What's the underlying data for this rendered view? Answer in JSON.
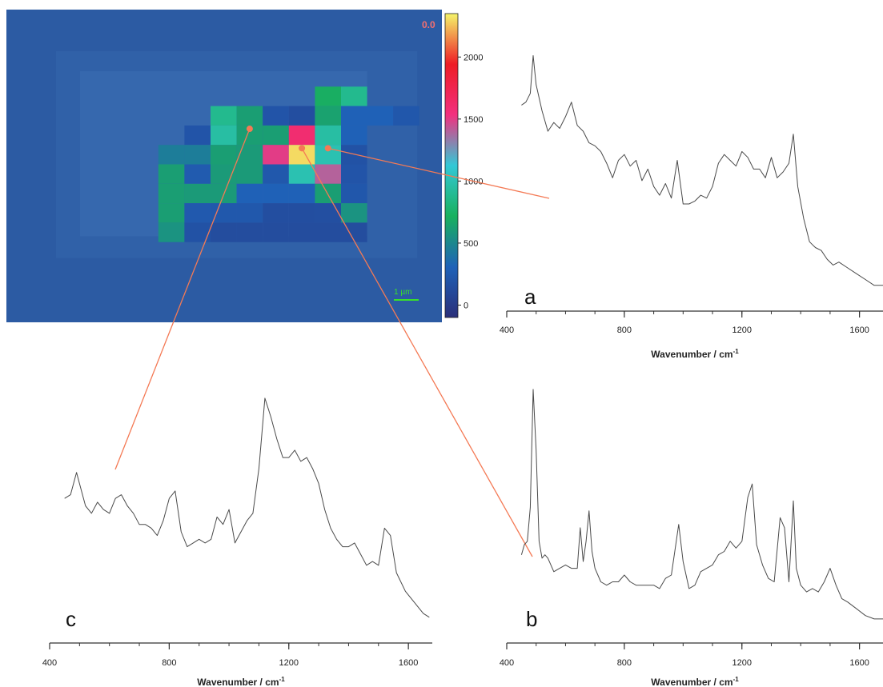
{
  "chart_data": [
    {
      "type": "heatmap",
      "corner_label": "0.0",
      "scale_bar_label": "1 µm",
      "colorbar": {
        "ticks": [
          0,
          500,
          1000,
          1500,
          2000
        ],
        "range": [
          -100,
          2350
        ],
        "stops": [
          "#2a2f7a",
          "#1f62b8",
          "#19b15e",
          "#33c8d6",
          "#f2307f",
          "#ee1c25",
          "#f5f56a"
        ]
      },
      "background_color": "#2c5ba3",
      "grid": {
        "rows": 9,
        "cols": 16,
        "values": [
          [
            120,
            120,
            120,
            120,
            120,
            120,
            120,
            120,
            120,
            120,
            120,
            120,
            120,
            120,
            120,
            120
          ],
          [
            120,
            120,
            120,
            120,
            120,
            120,
            120,
            120,
            120,
            700,
            880,
            120,
            120,
            120,
            120,
            120
          ],
          [
            120,
            120,
            120,
            120,
            120,
            880,
            620,
            200,
            150,
            640,
            300,
            300,
            220,
            120,
            120,
            120
          ],
          [
            120,
            120,
            120,
            120,
            200,
            950,
            620,
            620,
            1600,
            950,
            300,
            120,
            120,
            120,
            120,
            120
          ],
          [
            120,
            120,
            120,
            450,
            450,
            620,
            600,
            1500,
            2300,
            1000,
            180,
            120,
            120,
            120,
            120,
            120
          ],
          [
            120,
            120,
            120,
            620,
            250,
            600,
            600,
            230,
            1000,
            1400,
            200,
            120,
            120,
            120,
            120,
            120
          ],
          [
            120,
            120,
            120,
            620,
            600,
            600,
            300,
            300,
            300,
            620,
            220,
            120,
            120,
            120,
            120,
            120
          ],
          [
            120,
            120,
            120,
            620,
            240,
            230,
            230,
            150,
            150,
            160,
            560,
            120,
            120,
            120,
            120,
            120
          ],
          [
            120,
            120,
            120,
            560,
            180,
            140,
            140,
            140,
            140,
            140,
            140,
            120,
            120,
            120,
            120,
            120
          ]
        ]
      },
      "markers": [
        {
          "name": "c",
          "col": 6,
          "row": 3
        },
        {
          "name": "b",
          "col": 8,
          "row": 4
        },
        {
          "name": "a",
          "col": 9,
          "row": 4
        }
      ]
    },
    {
      "type": "line",
      "panel_label": "a",
      "xlabel": "Wavenumber / cm",
      "xlabel_sup": "-1",
      "xlim": [
        400,
        1680
      ],
      "ticks": [
        400,
        800,
        1200,
        1600
      ],
      "x": [
        450,
        465,
        480,
        490,
        500,
        520,
        540,
        560,
        580,
        600,
        620,
        640,
        660,
        680,
        700,
        720,
        740,
        760,
        780,
        800,
        820,
        840,
        860,
        880,
        900,
        920,
        940,
        960,
        980,
        1000,
        1020,
        1040,
        1060,
        1080,
        1100,
        1120,
        1140,
        1160,
        1180,
        1200,
        1220,
        1240,
        1260,
        1280,
        1300,
        1320,
        1340,
        1360,
        1375,
        1390,
        1410,
        1430,
        1450,
        1470,
        1490,
        1510,
        1530,
        1560,
        1590,
        1620,
        1650,
        1680
      ],
      "y": [
        6.2,
        6.3,
        6.6,
        7.9,
        6.9,
        6.0,
        5.3,
        5.6,
        5.4,
        5.8,
        6.3,
        5.5,
        5.3,
        4.9,
        4.8,
        4.6,
        4.2,
        3.7,
        4.3,
        4.5,
        4.1,
        4.3,
        3.6,
        4.0,
        3.4,
        3.1,
        3.5,
        3.0,
        4.3,
        2.8,
        2.8,
        2.9,
        3.1,
        3.0,
        3.4,
        4.2,
        4.5,
        4.3,
        4.1,
        4.6,
        4.4,
        4.0,
        4.0,
        3.7,
        4.4,
        3.7,
        3.9,
        4.2,
        5.2,
        3.4,
        2.3,
        1.5,
        1.3,
        1.2,
        0.9,
        0.7,
        0.8,
        0.6,
        0.4,
        0.2,
        0.0,
        0.0
      ],
      "ylim": [
        -0.5,
        8.3
      ]
    },
    {
      "type": "line",
      "panel_label": "c",
      "xlabel": "Wavenumber / cm",
      "xlabel_sup": "-1",
      "xlim": [
        400,
        1680
      ],
      "ticks": [
        400,
        800,
        1200,
        1600
      ],
      "x": [
        450,
        470,
        490,
        500,
        520,
        540,
        560,
        580,
        600,
        620,
        640,
        660,
        680,
        700,
        720,
        740,
        760,
        780,
        800,
        820,
        840,
        860,
        880,
        900,
        920,
        940,
        960,
        980,
        1000,
        1020,
        1040,
        1060,
        1080,
        1100,
        1120,
        1140,
        1160,
        1180,
        1200,
        1220,
        1240,
        1260,
        1280,
        1300,
        1320,
        1340,
        1360,
        1380,
        1400,
        1420,
        1440,
        1460,
        1480,
        1500,
        1520,
        1540,
        1560,
        1590,
        1620,
        1650,
        1670
      ],
      "y": [
        3.2,
        3.3,
        3.9,
        3.6,
        3.0,
        2.8,
        3.1,
        2.9,
        2.8,
        3.2,
        3.3,
        3.0,
        2.8,
        2.5,
        2.5,
        2.4,
        2.2,
        2.6,
        3.2,
        3.4,
        2.3,
        1.9,
        2.0,
        2.1,
        2.0,
        2.1,
        2.7,
        2.5,
        2.9,
        2.0,
        2.3,
        2.6,
        2.8,
        4.0,
        5.9,
        5.4,
        4.8,
        4.3,
        4.3,
        4.5,
        4.2,
        4.3,
        4.0,
        3.6,
        2.9,
        2.4,
        2.1,
        1.9,
        1.9,
        2.0,
        1.7,
        1.4,
        1.5,
        1.4,
        2.4,
        2.2,
        1.2,
        0.7,
        0.4,
        0.1,
        0.0
      ],
      "ylim": [
        -0.5,
        6.5
      ]
    },
    {
      "type": "line",
      "panel_label": "b",
      "xlabel": "Wavenumber / cm",
      "xlabel_sup": "-1",
      "xlim": [
        400,
        1680
      ],
      "ticks": [
        400,
        800,
        1200,
        1600
      ],
      "x": [
        450,
        460,
        470,
        480,
        490,
        500,
        510,
        520,
        530,
        540,
        560,
        580,
        600,
        620,
        640,
        650,
        660,
        670,
        680,
        690,
        700,
        720,
        740,
        760,
        780,
        800,
        820,
        840,
        860,
        880,
        900,
        920,
        940,
        960,
        970,
        985,
        1000,
        1020,
        1040,
        1060,
        1080,
        1100,
        1120,
        1140,
        1160,
        1180,
        1200,
        1220,
        1235,
        1250,
        1270,
        1290,
        1310,
        1330,
        1345,
        1360,
        1375,
        1385,
        1400,
        1420,
        1440,
        1460,
        1480,
        1500,
        1520,
        1540,
        1560,
        1590,
        1620,
        1650,
        1680
      ],
      "y": [
        1.9,
        2.2,
        2.3,
        3.3,
        6.8,
        5.0,
        2.3,
        1.8,
        1.9,
        1.8,
        1.4,
        1.5,
        1.6,
        1.5,
        1.5,
        2.7,
        1.7,
        2.3,
        3.2,
        2.0,
        1.5,
        1.1,
        1.0,
        1.1,
        1.1,
        1.3,
        1.1,
        1.0,
        1.0,
        1.0,
        1.0,
        0.9,
        1.2,
        1.3,
        1.9,
        2.8,
        1.7,
        0.9,
        1.0,
        1.4,
        1.5,
        1.6,
        1.9,
        2.0,
        2.3,
        2.1,
        2.3,
        3.6,
        4.0,
        2.2,
        1.6,
        1.2,
        1.1,
        3.0,
        2.7,
        1.1,
        3.5,
        1.5,
        1.0,
        0.8,
        0.9,
        0.8,
        1.1,
        1.5,
        1.0,
        0.6,
        0.5,
        0.3,
        0.1,
        0.0,
        0.0
      ],
      "ylim": [
        -0.5,
        7.2
      ]
    }
  ]
}
